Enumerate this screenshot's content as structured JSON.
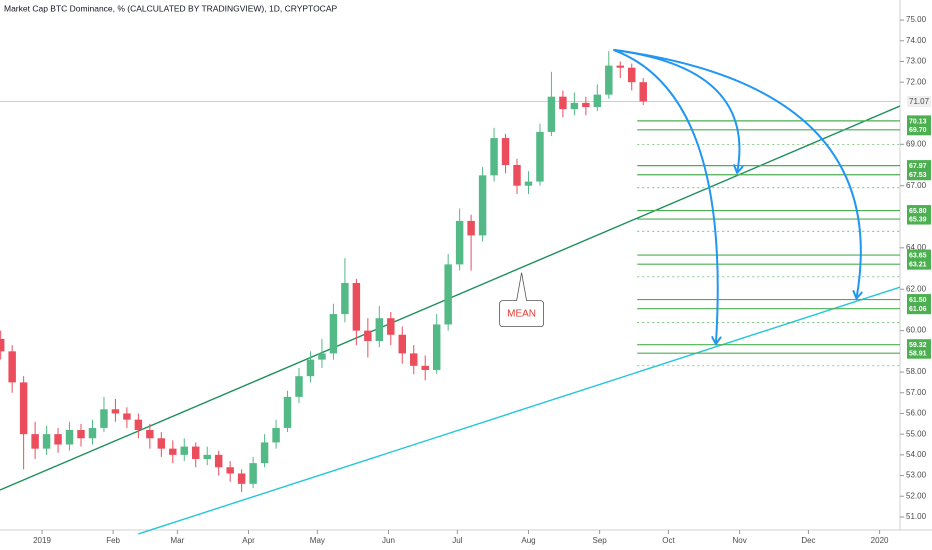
{
  "chart_data": {
    "type": "candlestick",
    "title": "Market Cap BTC Dominance, % (CALCULATED BY TRADINGVIEW), 1D, CRYPTOCAP",
    "up_color": "#53b987",
    "down_color": "#eb4d5c",
    "x": [
      -18,
      -13,
      -8,
      -3,
      2,
      7,
      12,
      17,
      22,
      27,
      32,
      37,
      42,
      47,
      52,
      57,
      62,
      67,
      72,
      77,
      82,
      87,
      92,
      97,
      102,
      107,
      112,
      117,
      122,
      127,
      132,
      137,
      142,
      147,
      152,
      157,
      162,
      167,
      172,
      177,
      182,
      187,
      192,
      197,
      202,
      207,
      212,
      217,
      222,
      227,
      232,
      237,
      242,
      247,
      252,
      257,
      262
    ],
    "open": [
      59.6,
      59.0,
      57.5,
      55.0,
      54.3,
      55.0,
      54.5,
      55.2,
      54.8,
      55.3,
      56.2,
      56.0,
      55.7,
      55.2,
      54.8,
      54.3,
      54.0,
      54.4,
      53.8,
      54.0,
      53.4,
      53.1,
      52.6,
      53.6,
      54.6,
      55.3,
      56.8,
      57.8,
      58.6,
      58.9,
      60.8,
      62.3,
      60.0,
      59.5,
      60.6,
      59.8,
      58.9,
      58.3,
      58.1,
      60.3,
      63.2,
      65.3,
      64.6,
      67.5,
      69.3,
      68.0,
      67.0,
      67.2,
      69.6,
      71.3,
      70.7,
      71.0,
      70.8,
      71.4,
      72.8,
      72.7,
      72.0
    ],
    "high": [
      60.0,
      59.3,
      57.8,
      55.6,
      55.4,
      55.3,
      55.6,
      55.5,
      55.7,
      56.8,
      56.7,
      56.3,
      56.0,
      55.5,
      55.1,
      54.7,
      54.8,
      54.6,
      54.4,
      54.2,
      53.7,
      53.3,
      53.9,
      55.0,
      55.7,
      57.1,
      58.2,
      59.0,
      59.6,
      61.3,
      63.5,
      62.5,
      60.6,
      61.2,
      60.9,
      60.2,
      59.3,
      58.8,
      60.8,
      63.7,
      65.9,
      65.6,
      67.9,
      69.8,
      69.5,
      68.3,
      67.7,
      70.0,
      72.5,
      71.6,
      71.5,
      71.3,
      71.9,
      73.5,
      73.0,
      72.9,
      72.2
    ],
    "low": [
      58.6,
      57.0,
      53.3,
      53.8,
      54.0,
      54.1,
      54.2,
      54.4,
      54.5,
      55.1,
      55.6,
      55.3,
      54.8,
      54.3,
      53.9,
      53.6,
      53.7,
      53.4,
      53.5,
      53.0,
      52.7,
      52.2,
      52.4,
      53.4,
      54.3,
      55.1,
      56.5,
      57.5,
      58.2,
      58.6,
      60.4,
      59.3,
      58.7,
      59.2,
      59.3,
      58.4,
      57.9,
      57.6,
      57.9,
      60.0,
      62.9,
      62.9,
      64.3,
      67.2,
      67.6,
      66.6,
      66.6,
      67.0,
      69.4,
      70.3,
      70.4,
      70.4,
      70.6,
      71.2,
      72.2,
      71.6,
      70.9
    ],
    "close": [
      59.0,
      57.5,
      55.0,
      54.3,
      55.0,
      54.5,
      55.2,
      54.8,
      55.3,
      56.2,
      56.0,
      55.7,
      55.2,
      54.8,
      54.3,
      54.0,
      54.4,
      53.8,
      54.0,
      53.4,
      53.1,
      52.6,
      53.6,
      54.6,
      55.3,
      56.8,
      57.8,
      58.6,
      58.9,
      60.8,
      62.3,
      60.0,
      59.5,
      60.6,
      59.8,
      58.9,
      58.3,
      58.1,
      60.3,
      63.2,
      65.3,
      64.6,
      67.5,
      69.3,
      68.0,
      67.0,
      67.2,
      69.6,
      71.3,
      70.7,
      71.0,
      70.8,
      71.4,
      72.8,
      72.7,
      72.0,
      71.07
    ],
    "xlim": [
      -18.3,
      373.9
    ],
    "xticks": [
      {
        "value": 0,
        "label": "2019"
      },
      {
        "value": 31,
        "label": "Feb"
      },
      {
        "value": 59,
        "label": "Mar"
      },
      {
        "value": 90,
        "label": "Apr"
      },
      {
        "value": 120,
        "label": "May"
      },
      {
        "value": 151,
        "label": "Jun"
      },
      {
        "value": 181,
        "label": "Jul"
      },
      {
        "value": 212,
        "label": "Aug"
      },
      {
        "value": 243,
        "label": "Sep"
      },
      {
        "value": 273,
        "label": "Oct"
      },
      {
        "value": 304,
        "label": "Nov"
      },
      {
        "value": 334,
        "label": "Dec"
      },
      {
        "value": 365,
        "label": "2020"
      }
    ],
    "ylim": [
      50.37,
      75.97
    ],
    "yticks": [
      {
        "value": 51,
        "label": "51.00"
      },
      {
        "value": 52,
        "label": "52.00"
      },
      {
        "value": 53,
        "label": "53.00"
      },
      {
        "value": 54,
        "label": "54.00"
      },
      {
        "value": 55,
        "label": "55.00"
      },
      {
        "value": 56,
        "label": "56.00"
      },
      {
        "value": 57,
        "label": "57.00"
      },
      {
        "value": 58,
        "label": "58.00"
      },
      {
        "value": 60,
        "label": "60.00"
      },
      {
        "value": 62,
        "label": "62.00"
      },
      {
        "value": 64,
        "label": "64.00"
      },
      {
        "value": 67,
        "label": "67.00"
      },
      {
        "value": 69,
        "label": "69.00"
      },
      {
        "value": 72,
        "label": "72.00"
      },
      {
        "value": 73,
        "label": "73.00"
      },
      {
        "value": 74,
        "label": "74.00"
      },
      {
        "value": 75,
        "label": "75.00"
      }
    ],
    "last_price": 71.07,
    "level_color": "#4caf50",
    "levels": [
      {
        "value": 70.13,
        "label": "70.13"
      },
      {
        "value": 69.7,
        "label": "69.70"
      },
      {
        "value": 67.97,
        "label": "67.97"
      },
      {
        "value": 67.53,
        "label": "67.53"
      },
      {
        "value": 65.8,
        "label": "65.80"
      },
      {
        "value": 65.39,
        "label": "65.39"
      },
      {
        "value": 63.65,
        "label": "63.65"
      },
      {
        "value": 63.21,
        "label": "63.21"
      },
      {
        "value": 61.5,
        "label": "61.50"
      },
      {
        "value": 61.06,
        "label": "61.06"
      },
      {
        "value": 59.32,
        "label": "59.32"
      },
      {
        "value": 58.91,
        "label": "58.91"
      }
    ],
    "dashed_levels": [
      69.0,
      66.9,
      64.8,
      62.6,
      60.4,
      58.3
    ],
    "trend_lines": [
      {
        "color": "#1e8f5a",
        "points": [
          [
            -18.3,
            52.3
          ],
          [
            373.9,
            70.85
          ]
        ]
      },
      {
        "color": "#26c6da",
        "points": [
          [
            42,
            50.18
          ],
          [
            373.9,
            62.1
          ]
        ]
      }
    ],
    "arrow_color": "#2196f3",
    "arrows": [
      {
        "from": [
          249,
          73.56
        ],
        "to": [
          303,
          67.67
        ]
      },
      {
        "from": [
          249,
          73.56
        ],
        "to": [
          355,
          61.6
        ]
      },
      {
        "from": [
          249,
          73.56
        ],
        "to": [
          293.7,
          59.4
        ]
      }
    ],
    "annotation": {
      "text": "MEAN",
      "at": [
        209,
        62.8
      ]
    }
  }
}
